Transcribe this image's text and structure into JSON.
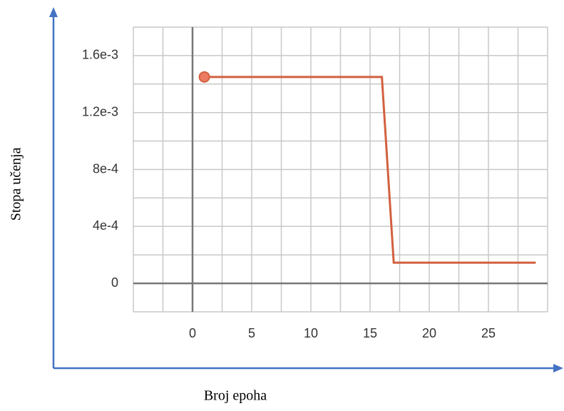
{
  "chart_data": {
    "type": "line",
    "xlabel": "Broj epoha",
    "ylabel": "Stopa učenja",
    "x": [
      1,
      16,
      17,
      29
    ],
    "series": [
      {
        "color": "#d2603f",
        "values": [
          0.00145,
          0.00145,
          0.000145,
          0.000145
        ]
      }
    ],
    "xlim": [
      -5,
      30
    ],
    "ylim": [
      -0.0002,
      0.0018
    ],
    "xticks": [
      0,
      5,
      10,
      15,
      20,
      25
    ],
    "yticks": [
      0,
      {
        "value": 0.0004,
        "label": "4e-4"
      },
      {
        "value": 0.0008,
        "label": "8e-4"
      },
      {
        "value": 0.0012,
        "label": "1.2e-3"
      },
      {
        "value": 0.0016,
        "label": "1.6e-3"
      }
    ],
    "grid": true
  }
}
